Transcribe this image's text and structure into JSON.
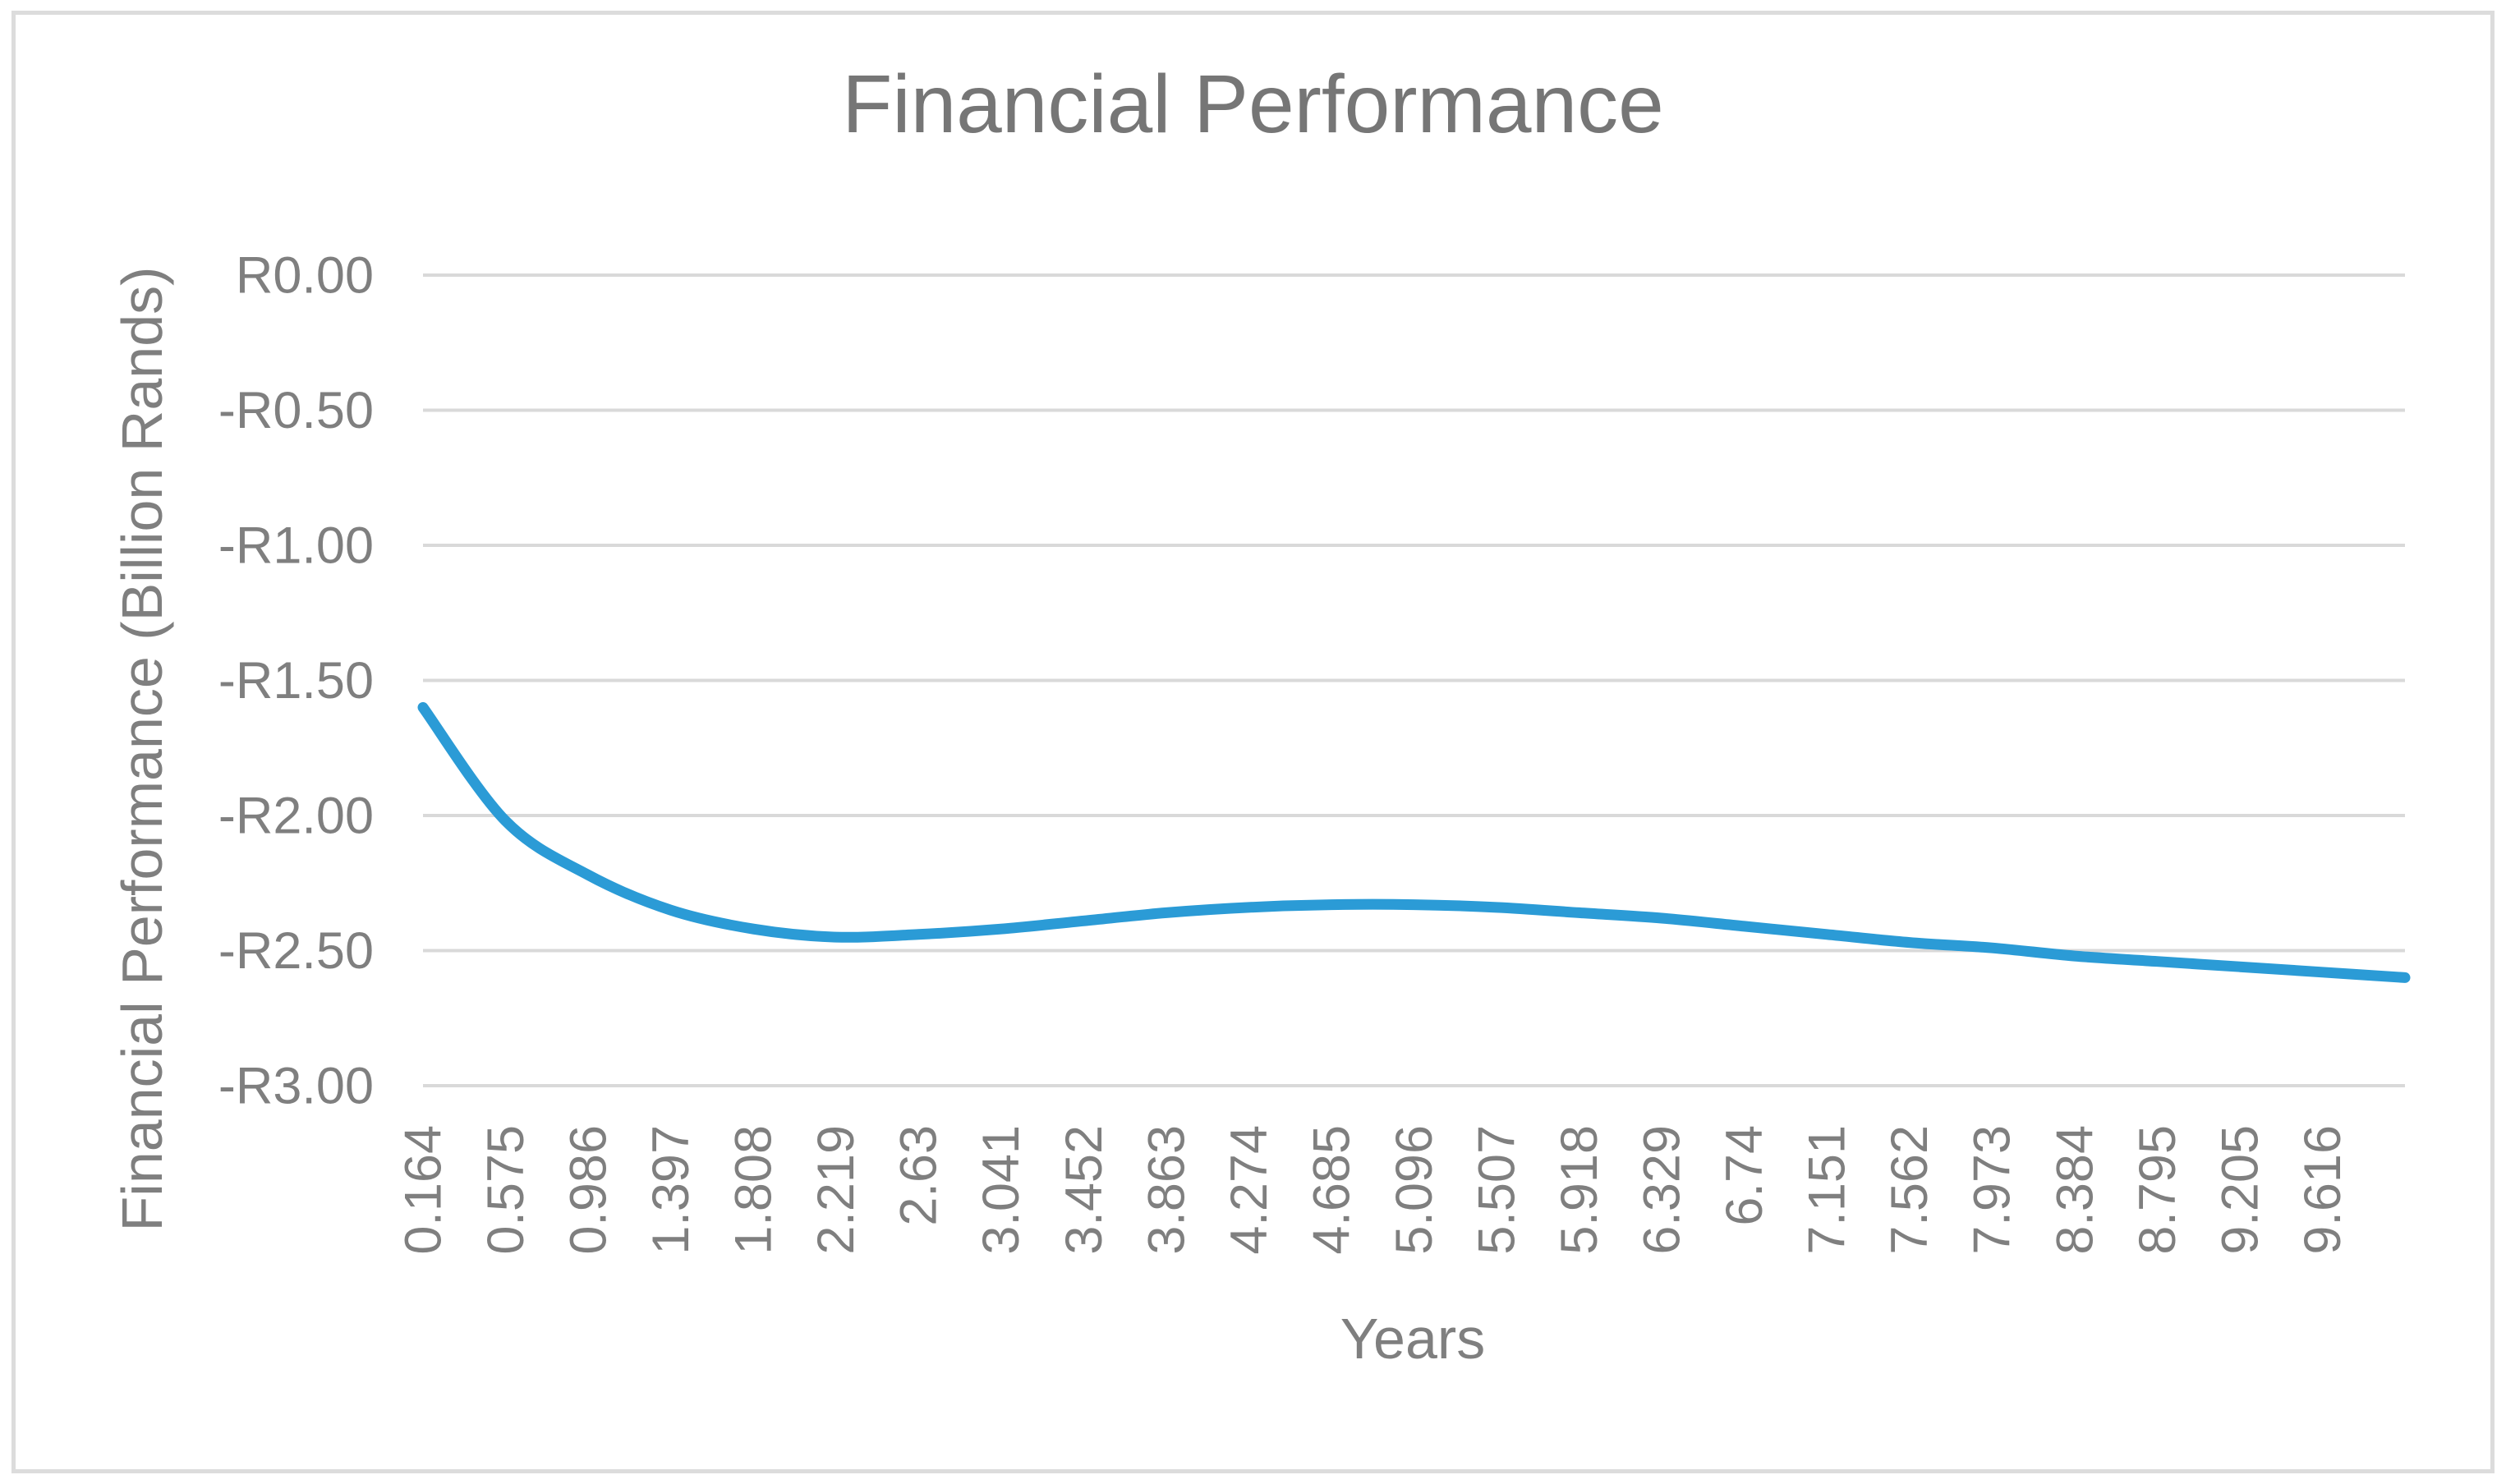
{
  "window": {
    "background": "#ffffff",
    "border_color": "#dcdcdc"
  },
  "chart": {
    "title": "Financial Performance",
    "x_axis": {
      "label": "Years"
    },
    "y_axis": {
      "label": "Financial Performance (Billion Rands)"
    }
  },
  "chart_data": {
    "type": "line",
    "title": "Financial Performance",
    "xlabel": "Years",
    "ylabel": "Financial Performance (Billion Rands)",
    "currency_symbol": "R",
    "categories": [
      0.164,
      0.575,
      0.986,
      1.397,
      1.808,
      2.219,
      2.63,
      3.041,
      3.452,
      3.863,
      4.274,
      4.685,
      5.096,
      5.507,
      5.918,
      6.329,
      6.74,
      7.151,
      7.562,
      7.973,
      8.384,
      8.795,
      9.205,
      9.616
    ],
    "x_tick_labels": [
      "0.164",
      "0.575",
      "0.986",
      "1.397",
      "1.808",
      "2.219",
      "2.63",
      "3.041",
      "3.452",
      "3.863",
      "4.274",
      "4.685",
      "5.096",
      "5.507",
      "5.918",
      "6.329",
      "6.74",
      "7.151",
      "7.562",
      "7.973",
      "8.384",
      "8.795",
      "9.205",
      "9.616"
    ],
    "x_tick_rotation_deg": -90,
    "series": [
      {
        "name": "Financial Performance (Billion Rands)",
        "smoothed": true,
        "color": "#2b9bd6",
        "stroke_width_px": 13,
        "values": [
          -1.6,
          -2.02,
          -2.22,
          -2.35,
          -2.42,
          -2.45,
          -2.44,
          -2.42,
          -2.39,
          -2.36,
          -2.34,
          -2.33,
          -2.33,
          -2.34,
          -2.36,
          -2.38,
          -2.41,
          -2.44,
          -2.47,
          -2.49,
          -2.52,
          -2.54,
          -2.56,
          -2.58
        ],
        "value_at_unlabeled_end_point": -2.6
      }
    ],
    "ylim": [
      -3.0,
      0.0
    ],
    "y_tick_labels": [
      "R0.00",
      "-R0.50",
      "-R1.00",
      "-R1.50",
      "-R2.00",
      "-R2.50",
      "-R3.00"
    ],
    "y_tick_values": [
      0,
      -0.5,
      -1.0,
      -1.5,
      -2.0,
      -2.5,
      -3.0
    ],
    "grid": "horizontal-only",
    "gridline_color": "#d9d9d9",
    "tick_label_color": "#7f7f7f",
    "legend": "none"
  }
}
